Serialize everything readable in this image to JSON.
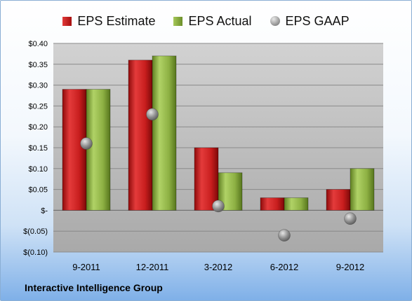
{
  "legend": {
    "estimate_label": "EPS Estimate",
    "actual_label": "EPS Actual",
    "gaap_label": "EPS GAAP"
  },
  "company": "Interactive Intelligence Group",
  "colors": {
    "estimate": "#c81e1e",
    "actual": "#8db043",
    "gaap": "#9a9a9a",
    "plot_bg": "#c8c8c8"
  },
  "chart_data": {
    "type": "bar",
    "categories": [
      "9-2011",
      "12-2011",
      "3-2012",
      "6-2012",
      "9-2012"
    ],
    "series": [
      {
        "name": "EPS Estimate",
        "values": [
          0.29,
          0.36,
          0.15,
          0.03,
          0.05
        ]
      },
      {
        "name": "EPS Actual",
        "values": [
          0.29,
          0.37,
          0.09,
          0.03,
          0.1
        ]
      },
      {
        "name": "EPS GAAP",
        "values": [
          0.16,
          0.23,
          0.01,
          -0.06,
          -0.02
        ],
        "marker": "circle"
      }
    ],
    "ylim": [
      -0.1,
      0.4
    ],
    "yticks": [
      -0.1,
      -0.05,
      0,
      0.05,
      0.1,
      0.15,
      0.2,
      0.25,
      0.3,
      0.35,
      0.4
    ],
    "ytick_labels": [
      "$(0.10)",
      "$(0.05)",
      "$-",
      "$0.05",
      "$0.10",
      "$0.15",
      "$0.20",
      "$0.25",
      "$0.30",
      "$0.35",
      "$0.40"
    ],
    "grid": true,
    "legend_position": "top"
  }
}
